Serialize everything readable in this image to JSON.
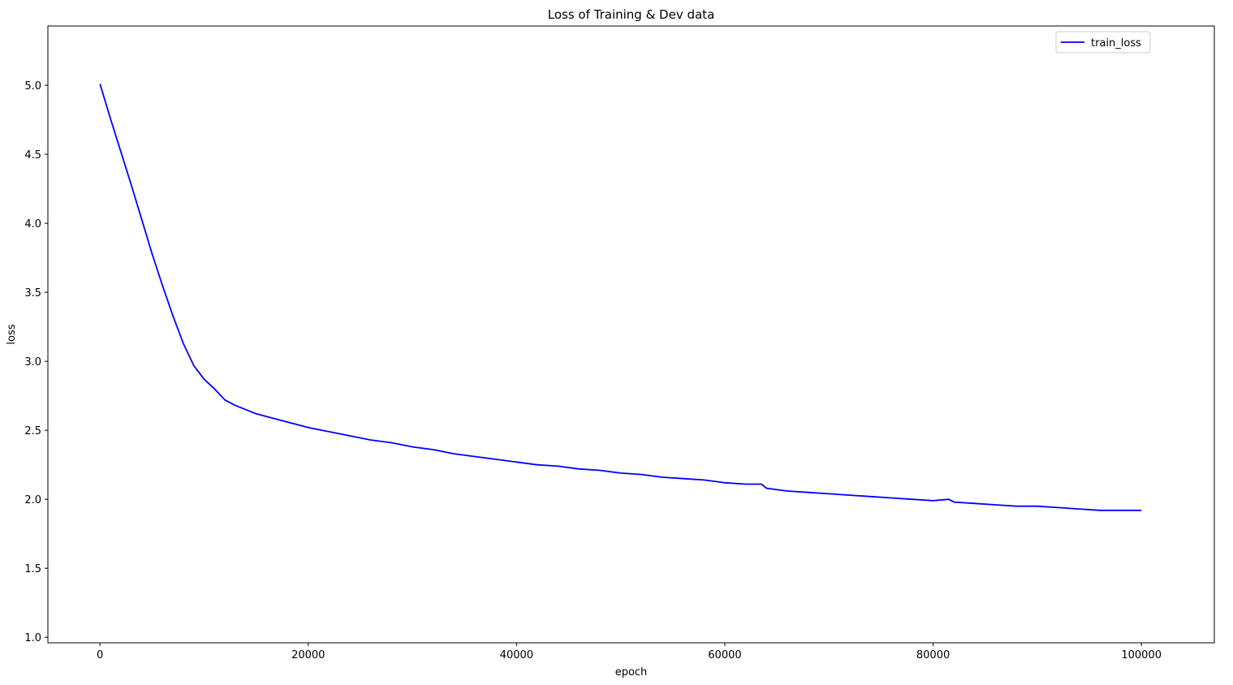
{
  "chart_data": {
    "type": "line",
    "title": "Loss of Training & Dev data",
    "xlabel": "epoch",
    "ylabel": "loss",
    "xlim": [
      -5000,
      107000
    ],
    "ylim": [
      0.96,
      5.43
    ],
    "xticks": [
      0,
      20000,
      40000,
      60000,
      80000,
      100000
    ],
    "xtick_labels": [
      "0",
      "20000",
      "40000",
      "60000",
      "80000",
      "100000"
    ],
    "yticks": [
      1.0,
      1.5,
      2.0,
      2.5,
      3.0,
      3.5,
      4.0,
      4.5,
      5.0
    ],
    "ytick_labels": [
      "1.0",
      "1.5",
      "2.0",
      "2.5",
      "3.0",
      "3.5",
      "4.0",
      "4.5",
      "5.0"
    ],
    "grid": false,
    "legend_position": "top-right",
    "series": [
      {
        "name": "train_loss",
        "color": "#0000ff",
        "x": [
          0,
          1000,
          2000,
          3000,
          4000,
          5000,
          6000,
          7000,
          8000,
          9000,
          10000,
          11000,
          12000,
          13000,
          14000,
          15000,
          16000,
          17000,
          18000,
          19000,
          20000,
          22000,
          24000,
          26000,
          28000,
          30000,
          32000,
          34000,
          36000,
          38000,
          40000,
          42000,
          44000,
          46000,
          48000,
          50000,
          52000,
          54000,
          56000,
          58000,
          60000,
          62000,
          63500,
          64000,
          66000,
          68000,
          70000,
          72000,
          74000,
          76000,
          78000,
          80000,
          81500,
          82000,
          84000,
          86000,
          88000,
          90000,
          92000,
          94000,
          96000,
          98000,
          100000
        ],
        "y": [
          5.01,
          4.76,
          4.52,
          4.28,
          4.03,
          3.78,
          3.55,
          3.33,
          3.13,
          2.97,
          2.87,
          2.8,
          2.72,
          2.68,
          2.65,
          2.62,
          2.6,
          2.58,
          2.56,
          2.54,
          2.52,
          2.49,
          2.46,
          2.43,
          2.41,
          2.38,
          2.36,
          2.33,
          2.31,
          2.29,
          2.27,
          2.25,
          2.24,
          2.22,
          2.21,
          2.19,
          2.18,
          2.16,
          2.15,
          2.14,
          2.12,
          2.11,
          2.11,
          2.08,
          2.06,
          2.05,
          2.04,
          2.03,
          2.02,
          2.01,
          2.0,
          1.99,
          2.0,
          1.98,
          1.97,
          1.96,
          1.95,
          1.95,
          1.94,
          1.93,
          1.92,
          1.92,
          1.92
        ]
      }
    ]
  }
}
